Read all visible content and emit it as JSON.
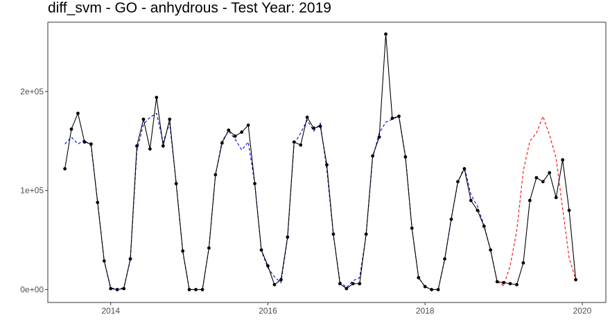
{
  "chart_data": {
    "type": "line",
    "title": "diff_svm - GO - anhydrous - Test Year: 2019",
    "xlabel": "",
    "ylabel": "",
    "xlim": [
      2013.2,
      2020.3
    ],
    "ylim": [
      -13000,
      270000
    ],
    "x_ticks": [
      2014,
      2016,
      2018,
      2020
    ],
    "x_tick_labels": [
      "2014",
      "2016",
      "2018",
      "2020"
    ],
    "y_ticks": [
      0,
      100000,
      200000
    ],
    "y_tick_labels": [
      "0e+00",
      "1e+05",
      "2e+05"
    ],
    "grid": false,
    "legend": "none",
    "colors": {
      "actual": "#000000",
      "fitted": "#0000cd",
      "forecast": "#ff0000"
    },
    "series": [
      {
        "key": "actual",
        "style": "solid-with-points",
        "x": [
          2013.417,
          2013.5,
          2013.583,
          2013.667,
          2013.75,
          2013.833,
          2013.917,
          2014.0,
          2014.083,
          2014.167,
          2014.25,
          2014.333,
          2014.417,
          2014.5,
          2014.583,
          2014.667,
          2014.75,
          2014.833,
          2014.917,
          2015.0,
          2015.083,
          2015.167,
          2015.25,
          2015.333,
          2015.417,
          2015.5,
          2015.583,
          2015.667,
          2015.75,
          2015.833,
          2015.917,
          2016.0,
          2016.083,
          2016.167,
          2016.25,
          2016.333,
          2016.417,
          2016.5,
          2016.583,
          2016.667,
          2016.75,
          2016.833,
          2016.917,
          2017.0,
          2017.083,
          2017.167,
          2017.25,
          2017.333,
          2017.417,
          2017.5,
          2017.583,
          2017.667,
          2017.75,
          2017.833,
          2017.917,
          2018.0,
          2018.083,
          2018.167,
          2018.25,
          2018.333,
          2018.417,
          2018.5,
          2018.583,
          2018.667,
          2018.75,
          2018.833,
          2018.917,
          2019.0,
          2019.083,
          2019.167,
          2019.25,
          2019.333,
          2019.417,
          2019.5,
          2019.583,
          2019.667,
          2019.75,
          2019.833,
          2019.917
        ],
        "values": [
          122000,
          162000,
          178000,
          149000,
          147000,
          88000,
          29000,
          1000,
          0,
          1000,
          31000,
          145000,
          172000,
          142000,
          194000,
          145000,
          172000,
          107000,
          39000,
          0,
          0,
          0,
          42000,
          116000,
          148000,
          161000,
          155000,
          159000,
          166000,
          107000,
          40000,
          24000,
          5000,
          10000,
          53000,
          149000,
          146000,
          174000,
          163000,
          165000,
          126000,
          56000,
          6000,
          1000,
          6000,
          6000,
          56000,
          135000,
          154000,
          258000,
          173000,
          175000,
          134000,
          62000,
          12000,
          3000,
          0,
          0,
          31000,
          71000,
          109000,
          122000,
          90000,
          80000,
          64000,
          40000,
          8000,
          7000,
          6000,
          5000,
          27000,
          90000,
          113000,
          109000,
          118000,
          93000,
          131000,
          80000,
          10000
        ]
      },
      {
        "key": "fitted",
        "style": "dashed",
        "x": [
          2013.417,
          2013.5,
          2013.583,
          2013.667,
          2013.75,
          2013.833,
          2013.917,
          2014.0,
          2014.083,
          2014.167,
          2014.25,
          2014.333,
          2014.417,
          2014.5,
          2014.583,
          2014.667,
          2014.75,
          2014.833,
          2014.917,
          2015.0,
          2015.083,
          2015.167,
          2015.25,
          2015.333,
          2015.417,
          2015.5,
          2015.583,
          2015.667,
          2015.75,
          2015.833,
          2015.917,
          2016.0,
          2016.083,
          2016.167,
          2016.25,
          2016.333,
          2016.417,
          2016.5,
          2016.583,
          2016.667,
          2016.75,
          2016.833,
          2016.917,
          2017.0,
          2017.083,
          2017.167,
          2017.25,
          2017.333,
          2017.417,
          2017.5,
          2017.583,
          2017.667,
          2017.75,
          2017.833,
          2017.917,
          2018.0,
          2018.083,
          2018.167,
          2018.25,
          2018.333,
          2018.417,
          2018.5,
          2018.583,
          2018.667,
          2018.75,
          2018.833,
          2018.917
        ],
        "values": [
          147000,
          154000,
          147000,
          151000,
          145000,
          89000,
          29000,
          2000,
          0,
          2000,
          30000,
          140000,
          167000,
          174000,
          178000,
          149000,
          168000,
          108000,
          38000,
          0,
          0,
          0,
          42000,
          116000,
          150000,
          160000,
          152000,
          141000,
          149000,
          107000,
          39000,
          22000,
          13000,
          7000,
          52000,
          147000,
          158000,
          171000,
          160000,
          168000,
          121000,
          55000,
          8000,
          2000,
          9000,
          12000,
          55000,
          133000,
          158000,
          169000,
          172000,
          175000,
          135000,
          62000,
          12000,
          3000,
          0,
          0,
          30000,
          72000,
          108000,
          124000,
          96000,
          84000,
          65000,
          40000,
          8000
        ]
      },
      {
        "key": "forecast",
        "style": "dashed",
        "x": [
          2018.917,
          2019.0,
          2019.083,
          2019.167,
          2019.25,
          2019.333,
          2019.417,
          2019.5,
          2019.583,
          2019.667,
          2019.75,
          2019.833,
          2019.917
        ],
        "values": [
          8000,
          4000,
          24000,
          60000,
          120000,
          150000,
          158000,
          175000,
          156000,
          133000,
          82000,
          32000,
          10000
        ]
      }
    ]
  }
}
